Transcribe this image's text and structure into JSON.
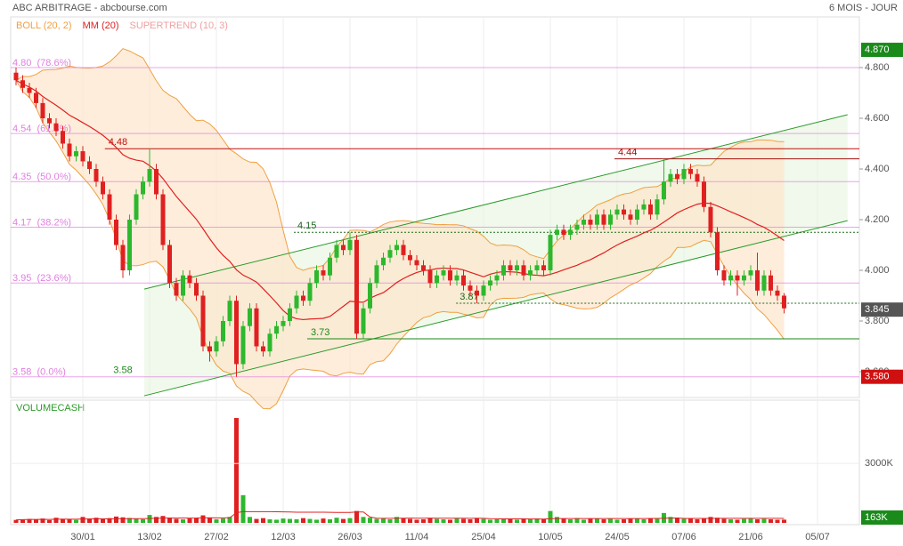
{
  "chart_data": {
    "type": "candlestick",
    "title": "ABC ARBITRAGE - abcbourse.com",
    "subtitle": "6 MOIS - JOUR",
    "indicators": [
      {
        "name": "BOLL (20, 2)",
        "color": "#f0a040"
      },
      {
        "name": "MM (20)",
        "color": "#e02020"
      },
      {
        "name": "SUPERTREND (10, 3)",
        "color": "#f0a0a0"
      }
    ],
    "xlim": [
      -0.8,
      126.27
    ],
    "xticks": [
      {
        "value": 10,
        "label": "30/01"
      },
      {
        "value": 20,
        "label": "13/02"
      },
      {
        "value": 30,
        "label": "27/02"
      },
      {
        "value": 40,
        "label": "12/03"
      },
      {
        "value": 50,
        "label": "26/03"
      },
      {
        "value": 60,
        "label": "11/04"
      },
      {
        "value": 70,
        "label": "25/04"
      },
      {
        "value": 80,
        "label": "10/05"
      },
      {
        "value": 90,
        "label": "24/05"
      },
      {
        "value": 100,
        "label": "07/06"
      },
      {
        "value": 110,
        "label": "21/06"
      },
      {
        "value": 120,
        "label": "05/07"
      }
    ],
    "ylim": [
      3.5,
      5.0
    ],
    "yticks": [
      {
        "value": 3.6,
        "label": "3.600"
      },
      {
        "value": 3.8,
        "label": "3.800"
      },
      {
        "value": 4.0,
        "label": "4.000"
      },
      {
        "value": 4.2,
        "label": "4.200"
      },
      {
        "value": 4.4,
        "label": "4.400"
      },
      {
        "value": 4.6,
        "label": "4.600"
      },
      {
        "value": 4.8,
        "label": "4.800"
      }
    ],
    "up_color": "#2db82d",
    "down_color": "#e02020",
    "open": [
      4.78,
      4.75,
      4.72,
      4.7,
      4.66,
      4.6,
      4.58,
      4.55,
      4.5,
      4.45,
      4.47,
      4.43,
      4.4,
      4.35,
      4.3,
      4.2,
      4.1,
      4.0,
      4.2,
      4.3,
      4.35,
      4.4,
      4.3,
      4.1,
      3.95,
      3.9,
      3.98,
      3.95,
      3.9,
      3.7,
      3.68,
      3.72,
      3.8,
      3.88,
      3.63,
      3.78,
      3.85,
      3.7,
      3.68,
      3.75,
      3.78,
      3.8,
      3.85,
      3.9,
      3.88,
      3.95,
      4.0,
      3.98,
      4.05,
      4.1,
      4.08,
      4.12,
      3.75,
      3.85,
      3.95,
      4.02,
      4.05,
      4.08,
      4.1,
      4.06,
      4.04,
      4.02,
      4.0,
      3.95,
      3.98,
      4.0,
      3.96,
      3.98,
      3.94,
      3.92,
      3.9,
      3.94,
      3.96,
      3.98,
      4.02,
      4.0,
      4.02,
      3.98,
      4.0,
      4.02,
      4.0,
      4.14,
      4.16,
      4.14,
      4.16,
      4.18,
      4.2,
      4.18,
      4.22,
      4.18,
      4.22,
      4.24,
      4.22,
      4.2,
      4.24,
      4.26,
      4.22,
      4.28,
      4.35,
      4.38,
      4.36,
      4.4,
      4.38,
      4.35,
      4.25,
      4.15,
      4.0,
      3.96,
      3.98,
      3.96,
      3.98,
      4.0,
      3.92,
      3.98,
      3.92,
      3.9
    ],
    "high": [
      4.8,
      4.77,
      4.74,
      4.72,
      4.68,
      4.62,
      4.6,
      4.57,
      4.52,
      4.49,
      4.49,
      4.45,
      4.42,
      4.37,
      4.32,
      4.22,
      4.12,
      4.22,
      4.32,
      4.37,
      4.48,
      4.42,
      4.32,
      4.12,
      3.97,
      4.0,
      4.0,
      3.97,
      3.92,
      3.72,
      3.74,
      3.82,
      3.9,
      3.9,
      3.8,
      3.87,
      3.87,
      3.72,
      3.77,
      3.8,
      3.82,
      3.87,
      3.92,
      3.92,
      3.97,
      4.02,
      4.02,
      4.07,
      4.12,
      4.12,
      4.15,
      4.14,
      3.87,
      3.97,
      4.04,
      4.07,
      4.1,
      4.12,
      4.12,
      4.08,
      4.06,
      4.04,
      4.02,
      4.0,
      4.02,
      4.02,
      4.0,
      4.0,
      3.96,
      3.94,
      3.96,
      3.98,
      4.0,
      4.04,
      4.04,
      4.04,
      4.04,
      4.02,
      4.04,
      4.04,
      4.16,
      4.18,
      4.18,
      4.18,
      4.2,
      4.22,
      4.22,
      4.24,
      4.24,
      4.24,
      4.26,
      4.26,
      4.24,
      4.26,
      4.28,
      4.28,
      4.3,
      4.44,
      4.4,
      4.4,
      4.42,
      4.42,
      4.4,
      4.37,
      4.27,
      4.17,
      4.02,
      4.0,
      4.0,
      4.0,
      4.02,
      4.07,
      4.0,
      4.0,
      3.94,
      3.91
    ],
    "low": [
      4.73,
      4.7,
      4.68,
      4.64,
      4.58,
      4.56,
      4.53,
      4.48,
      4.43,
      4.43,
      4.41,
      4.38,
      4.33,
      4.28,
      4.18,
      4.08,
      3.97,
      3.98,
      4.18,
      4.28,
      4.33,
      4.28,
      4.08,
      3.93,
      3.88,
      3.88,
      3.93,
      3.88,
      3.68,
      3.64,
      3.66,
      3.7,
      3.78,
      3.58,
      3.61,
      3.76,
      3.68,
      3.66,
      3.66,
      3.73,
      3.76,
      3.78,
      3.83,
      3.86,
      3.86,
      3.93,
      3.96,
      3.96,
      4.03,
      4.06,
      4.06,
      3.73,
      3.73,
      3.83,
      3.93,
      4.0,
      4.03,
      4.06,
      4.04,
      4.02,
      4.0,
      3.98,
      3.93,
      3.93,
      3.96,
      3.94,
      3.94,
      3.92,
      3.9,
      3.87,
      3.88,
      3.92,
      3.94,
      3.96,
      3.98,
      3.98,
      3.96,
      3.96,
      3.98,
      3.98,
      3.98,
      4.12,
      4.12,
      4.12,
      4.14,
      4.16,
      4.16,
      4.16,
      4.16,
      4.16,
      4.2,
      4.2,
      4.18,
      4.18,
      4.22,
      4.2,
      4.2,
      4.26,
      4.33,
      4.34,
      4.34,
      4.36,
      4.33,
      4.23,
      4.13,
      3.98,
      3.94,
      3.94,
      3.9,
      3.94,
      3.96,
      3.9,
      3.9,
      3.9,
      3.88,
      3.83
    ],
    "close": [
      4.75,
      4.72,
      4.7,
      4.66,
      4.6,
      4.58,
      4.55,
      4.5,
      4.45,
      4.47,
      4.43,
      4.4,
      4.35,
      4.3,
      4.2,
      4.1,
      4.0,
      4.2,
      4.3,
      4.35,
      4.4,
      4.3,
      4.1,
      3.95,
      3.9,
      3.98,
      3.95,
      3.9,
      3.7,
      3.68,
      3.72,
      3.8,
      3.88,
      3.63,
      3.78,
      3.85,
      3.7,
      3.68,
      3.75,
      3.78,
      3.8,
      3.85,
      3.9,
      3.88,
      3.95,
      4.0,
      3.98,
      4.05,
      4.1,
      4.08,
      4.12,
      3.75,
      3.85,
      3.95,
      4.02,
      4.05,
      4.08,
      4.1,
      4.06,
      4.04,
      4.02,
      4.0,
      3.95,
      3.98,
      4.0,
      3.96,
      3.98,
      3.94,
      3.92,
      3.9,
      3.94,
      3.96,
      3.98,
      4.02,
      4.0,
      4.02,
      3.98,
      4.0,
      4.02,
      4.0,
      4.14,
      4.16,
      4.14,
      4.16,
      4.18,
      4.2,
      4.18,
      4.22,
      4.18,
      4.22,
      4.24,
      4.22,
      4.2,
      4.24,
      4.26,
      4.22,
      4.28,
      4.35,
      4.38,
      4.36,
      4.4,
      4.38,
      4.35,
      4.25,
      4.15,
      4.0,
      3.96,
      3.98,
      3.96,
      3.98,
      4.0,
      3.92,
      3.98,
      3.92,
      3.9,
      3.85
    ],
    "price_tags": [
      {
        "value": 4.87,
        "label": "4.870",
        "color": "#1a8a1a"
      },
      {
        "value": 3.845,
        "label": "3.845",
        "color": "#555555"
      },
      {
        "value": 3.58,
        "label": "3.580",
        "color": "#d01010"
      }
    ],
    "fib_levels": [
      {
        "value": 4.8,
        "label": "4.80  (78.6%)"
      },
      {
        "value": 4.54,
        "label": "4.54  (61.8%)"
      },
      {
        "value": 4.35,
        "label": "4.35  (50.0%)"
      },
      {
        "value": 4.17,
        "label": "4.17  (38.2%)"
      },
      {
        "value": 3.95,
        "label": "3.95  (23.6%)"
      },
      {
        "value": 3.58,
        "label": "3.58  (0.0%)"
      }
    ],
    "fib_color": "#e080e0",
    "levels": [
      {
        "value": 4.48,
        "label": "4.48",
        "from": 13.3,
        "color": "#c01010",
        "style": "solid"
      },
      {
        "value": 4.44,
        "label": "4.44",
        "from": 89.6,
        "color": "#a01010",
        "style": "solid"
      },
      {
        "value": 4.15,
        "label": "4.15",
        "from": 41.6,
        "color": "#1a6a1a",
        "style": "dotted"
      },
      {
        "value": 3.87,
        "label": "3.87",
        "from": 65.9,
        "color": "#1a6a1a",
        "style": "dotted"
      },
      {
        "value": 3.73,
        "label": "3.73",
        "from": 43.6,
        "color": "#1a8a1a",
        "style": "solid"
      }
    ],
    "annotations": [
      {
        "label": "3.58",
        "value": 3.58,
        "x": 16
      }
    ],
    "channel": {
      "lower": [
        [
          19.2,
          3.505
        ],
        [
          124.5,
          4.196
        ]
      ],
      "upper": [
        [
          19.2,
          3.926
        ],
        [
          124.5,
          4.614
        ]
      ],
      "color": "#2a9a2a"
    },
    "volume": {
      "name": "VOLUMECASH",
      "ylim": [
        0,
        6200
      ],
      "yticks": [
        {
          "value": 3000,
          "label": "3000K"
        }
      ],
      "tag": {
        "value": 163,
        "label": "163K",
        "color": "#1a8a1a"
      },
      "values": [
        150,
        180,
        200,
        160,
        220,
        140,
        260,
        200,
        180,
        150,
        300,
        220,
        260,
        180,
        240,
        320,
        280,
        250,
        200,
        180,
        400,
        300,
        350,
        260,
        200,
        180,
        220,
        240,
        380,
        260,
        180,
        220,
        300,
        5300,
        1400,
        300,
        200,
        240,
        180,
        160,
        220,
        200,
        180,
        240,
        200,
        160,
        220,
        180,
        260,
        200,
        240,
        600,
        300,
        260,
        200,
        220,
        180,
        300,
        240,
        200,
        160,
        180,
        240,
        200,
        180,
        160,
        220,
        200,
        180,
        240,
        200,
        160,
        180,
        220,
        200,
        160,
        180,
        200,
        220,
        180,
        600,
        300,
        200,
        180,
        240,
        160,
        200,
        220,
        180,
        200,
        160,
        180,
        200,
        220,
        180,
        240,
        200,
        500,
        300,
        260,
        200,
        240,
        180,
        220,
        300,
        260,
        200,
        180,
        160,
        200,
        220,
        180,
        200,
        180,
        160,
        163
      ]
    }
  }
}
